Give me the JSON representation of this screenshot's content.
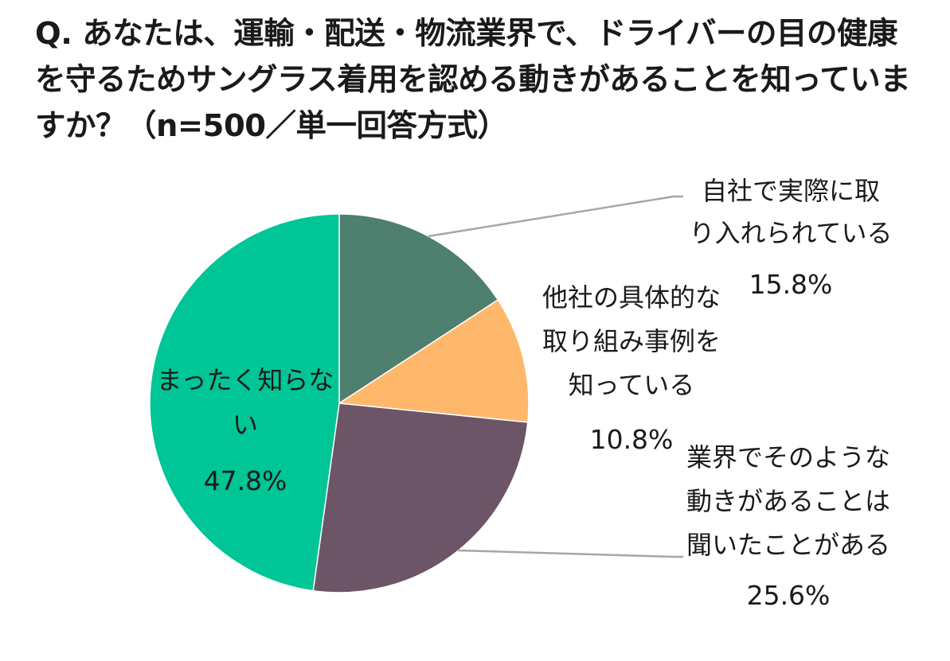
{
  "title": "Q. あなたは、運輸・配送・物流業界で、ドライバーの目の健康を守るためサングラス着用を認める動きがあることを知っていますか？（n=500／単一回答方式）",
  "chart_data": {
    "type": "pie",
    "title": "Q. あなたは、運輸・配送・物流業界で、ドライバーの目の健康を守るためサングラス着用を認める動きがあることを知っていますか？（n=500／単一回答方式）",
    "start": "12 o'clock",
    "direction": "clockwise",
    "slices": [
      {
        "label_lines": [
          "自社で実際に取",
          "り入れられている"
        ],
        "value": 15.8,
        "value_label": "15.8%",
        "color": "#4f7f6e"
      },
      {
        "label_lines": [
          "他社の具体的な",
          "取り組み事例を",
          "知っている"
        ],
        "value": 10.8,
        "value_label": "10.8%",
        "color": "#ffb86b"
      },
      {
        "label_lines": [
          "業界でそのような",
          "動きがあることは",
          "聞いたことがある"
        ],
        "value": 25.6,
        "value_label": "25.6%",
        "color": "#6b5566"
      },
      {
        "label_lines": [
          "まったく知らな",
          "い"
        ],
        "value": 47.8,
        "value_label": "47.8%",
        "color": "#00c596"
      }
    ],
    "leader_line_color": "#a6a6a6"
  }
}
